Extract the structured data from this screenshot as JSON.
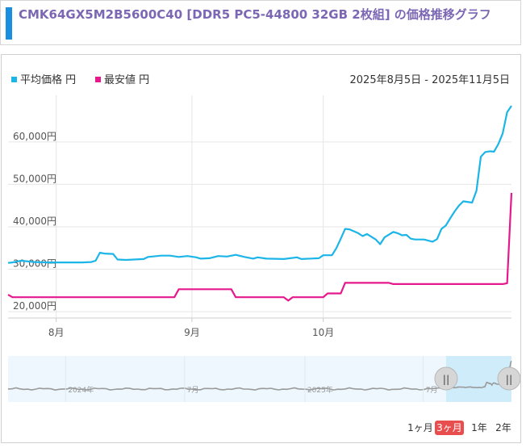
{
  "page": {
    "title": "CMK64GX5M2B5600C40 [DDR5 PC5-44800 32GB 2枚組] の価格推移グラフ"
  },
  "colors": {
    "avg": "#1cb5e8",
    "min": "#e5198b",
    "title": "#7b67b3",
    "accent_bar": "#1a8fe0",
    "range_active": "#e94e4e"
  },
  "chart_data": {
    "type": "line",
    "date_range": "2025年8月5日 - 2025年11月5日",
    "series": [
      {
        "name": "平均価格 円",
        "points": [
          [
            "2025-07-21",
            31500
          ],
          [
            "2025-07-22",
            31600
          ],
          [
            "2025-07-24",
            32000
          ],
          [
            "2025-07-27",
            31700
          ],
          [
            "2025-07-30",
            31600
          ],
          [
            "2025-08-03",
            31600
          ],
          [
            "2025-08-07",
            31600
          ],
          [
            "2025-08-09",
            31700
          ],
          [
            "2025-08-10",
            32000
          ],
          [
            "2025-08-11",
            33900
          ],
          [
            "2025-08-12",
            33700
          ],
          [
            "2025-08-14",
            33600
          ],
          [
            "2025-08-15",
            32300
          ],
          [
            "2025-08-17",
            32200
          ],
          [
            "2025-08-21",
            32400
          ],
          [
            "2025-08-22",
            32900
          ],
          [
            "2025-08-25",
            33200
          ],
          [
            "2025-08-27",
            33200
          ],
          [
            "2025-08-29",
            32900
          ],
          [
            "2025-08-31",
            33100
          ],
          [
            "2025-09-02",
            32800
          ],
          [
            "2025-09-03",
            32500
          ],
          [
            "2025-09-05",
            32600
          ],
          [
            "2025-09-07",
            33100
          ],
          [
            "2025-09-09",
            33000
          ],
          [
            "2025-09-11",
            33400
          ],
          [
            "2025-09-13",
            32900
          ],
          [
            "2025-09-15",
            32500
          ],
          [
            "2025-09-16",
            32800
          ],
          [
            "2025-09-18",
            32500
          ],
          [
            "2025-09-22",
            32400
          ],
          [
            "2025-09-25",
            32800
          ],
          [
            "2025-09-26",
            32400
          ],
          [
            "2025-09-30",
            32600
          ],
          [
            "2025-10-01",
            33300
          ],
          [
            "2025-10-03",
            33300
          ],
          [
            "2025-10-04",
            35000
          ],
          [
            "2025-10-05",
            37200
          ],
          [
            "2025-10-06",
            39500
          ],
          [
            "2025-10-07",
            39400
          ],
          [
            "2025-10-09",
            38500
          ],
          [
            "2025-10-10",
            37800
          ],
          [
            "2025-10-11",
            38300
          ],
          [
            "2025-10-13",
            37000
          ],
          [
            "2025-10-14",
            35900
          ],
          [
            "2025-10-15",
            37500
          ],
          [
            "2025-10-17",
            38800
          ],
          [
            "2025-10-18",
            38500
          ],
          [
            "2025-10-19",
            38000
          ],
          [
            "2025-10-20",
            38100
          ],
          [
            "2025-10-21",
            37200
          ],
          [
            "2025-10-22",
            37000
          ],
          [
            "2025-10-24",
            37000
          ],
          [
            "2025-10-26",
            36500
          ],
          [
            "2025-10-27",
            37100
          ],
          [
            "2025-10-28",
            39500
          ],
          [
            "2025-10-29",
            40300
          ],
          [
            "2025-10-30",
            42000
          ],
          [
            "2025-10-31",
            43600
          ],
          [
            "2025-11-01",
            45000
          ],
          [
            "2025-11-02",
            46000
          ],
          [
            "2025-11-04",
            45700
          ],
          [
            "2025-11-05",
            48500
          ],
          [
            "2025-11-06",
            56500
          ],
          [
            "2025-11-07",
            57600
          ],
          [
            "2025-11-08",
            57800
          ],
          [
            "2025-11-09",
            57700
          ],
          [
            "2025-11-10",
            59500
          ],
          [
            "2025-11-11",
            62000
          ],
          [
            "2025-11-12",
            67000
          ],
          [
            "2025-11-13",
            68500
          ]
        ]
      },
      {
        "name": "最安値 円",
        "points": [
          [
            "2025-07-21",
            24000
          ],
          [
            "2025-07-22",
            23400
          ],
          [
            "2025-08-15",
            23400
          ],
          [
            "2025-08-28",
            23400
          ],
          [
            "2025-08-29",
            25300
          ],
          [
            "2025-09-06",
            25300
          ],
          [
            "2025-09-10",
            25300
          ],
          [
            "2025-09-11",
            23400
          ],
          [
            "2025-09-20",
            23400
          ],
          [
            "2025-09-22",
            23400
          ],
          [
            "2025-09-23",
            22600
          ],
          [
            "2025-09-24",
            23400
          ],
          [
            "2025-10-01",
            23400
          ],
          [
            "2025-10-02",
            24300
          ],
          [
            "2025-10-05",
            24300
          ],
          [
            "2025-10-06",
            26800
          ],
          [
            "2025-10-16",
            26800
          ],
          [
            "2025-10-17",
            26500
          ],
          [
            "2025-11-11",
            26500
          ],
          [
            "2025-11-12",
            26700
          ],
          [
            "2025-11-13",
            48000
          ]
        ]
      }
    ],
    "y_ticks": [
      "20,000円",
      "30,000円",
      "40,000円",
      "50,000円",
      "60,000円"
    ],
    "y_tick_values": [
      20000,
      30000,
      40000,
      50000,
      60000
    ],
    "x_ticks": [
      "8月",
      "9月",
      "10月"
    ],
    "x_tick_dates": [
      "2025-08-01",
      "2025-09-01",
      "2025-10-01"
    ],
    "x_range": [
      "2025-07-21",
      "2025-11-13"
    ],
    "y_range": [
      18500,
      71000
    ],
    "grid": true,
    "legend_position": "top-left",
    "navigator": {
      "labels": [
        "2024年",
        "7月",
        "2025年",
        "7月"
      ],
      "label_dates": [
        "2024-01-01",
        "2024-07-01",
        "2025-01-01",
        "2025-07-01"
      ],
      "x_range": [
        "2023-10-05",
        "2025-11-13"
      ],
      "selected_range": [
        "2025-08-05",
        "2025-11-13"
      ],
      "handle_glyph": "||"
    },
    "range_buttons": [
      {
        "label": "1ヶ月",
        "active": false
      },
      {
        "label": "3ヶ月",
        "active": true
      },
      {
        "label": "1年",
        "active": false
      },
      {
        "label": "2年",
        "active": false
      }
    ]
  }
}
